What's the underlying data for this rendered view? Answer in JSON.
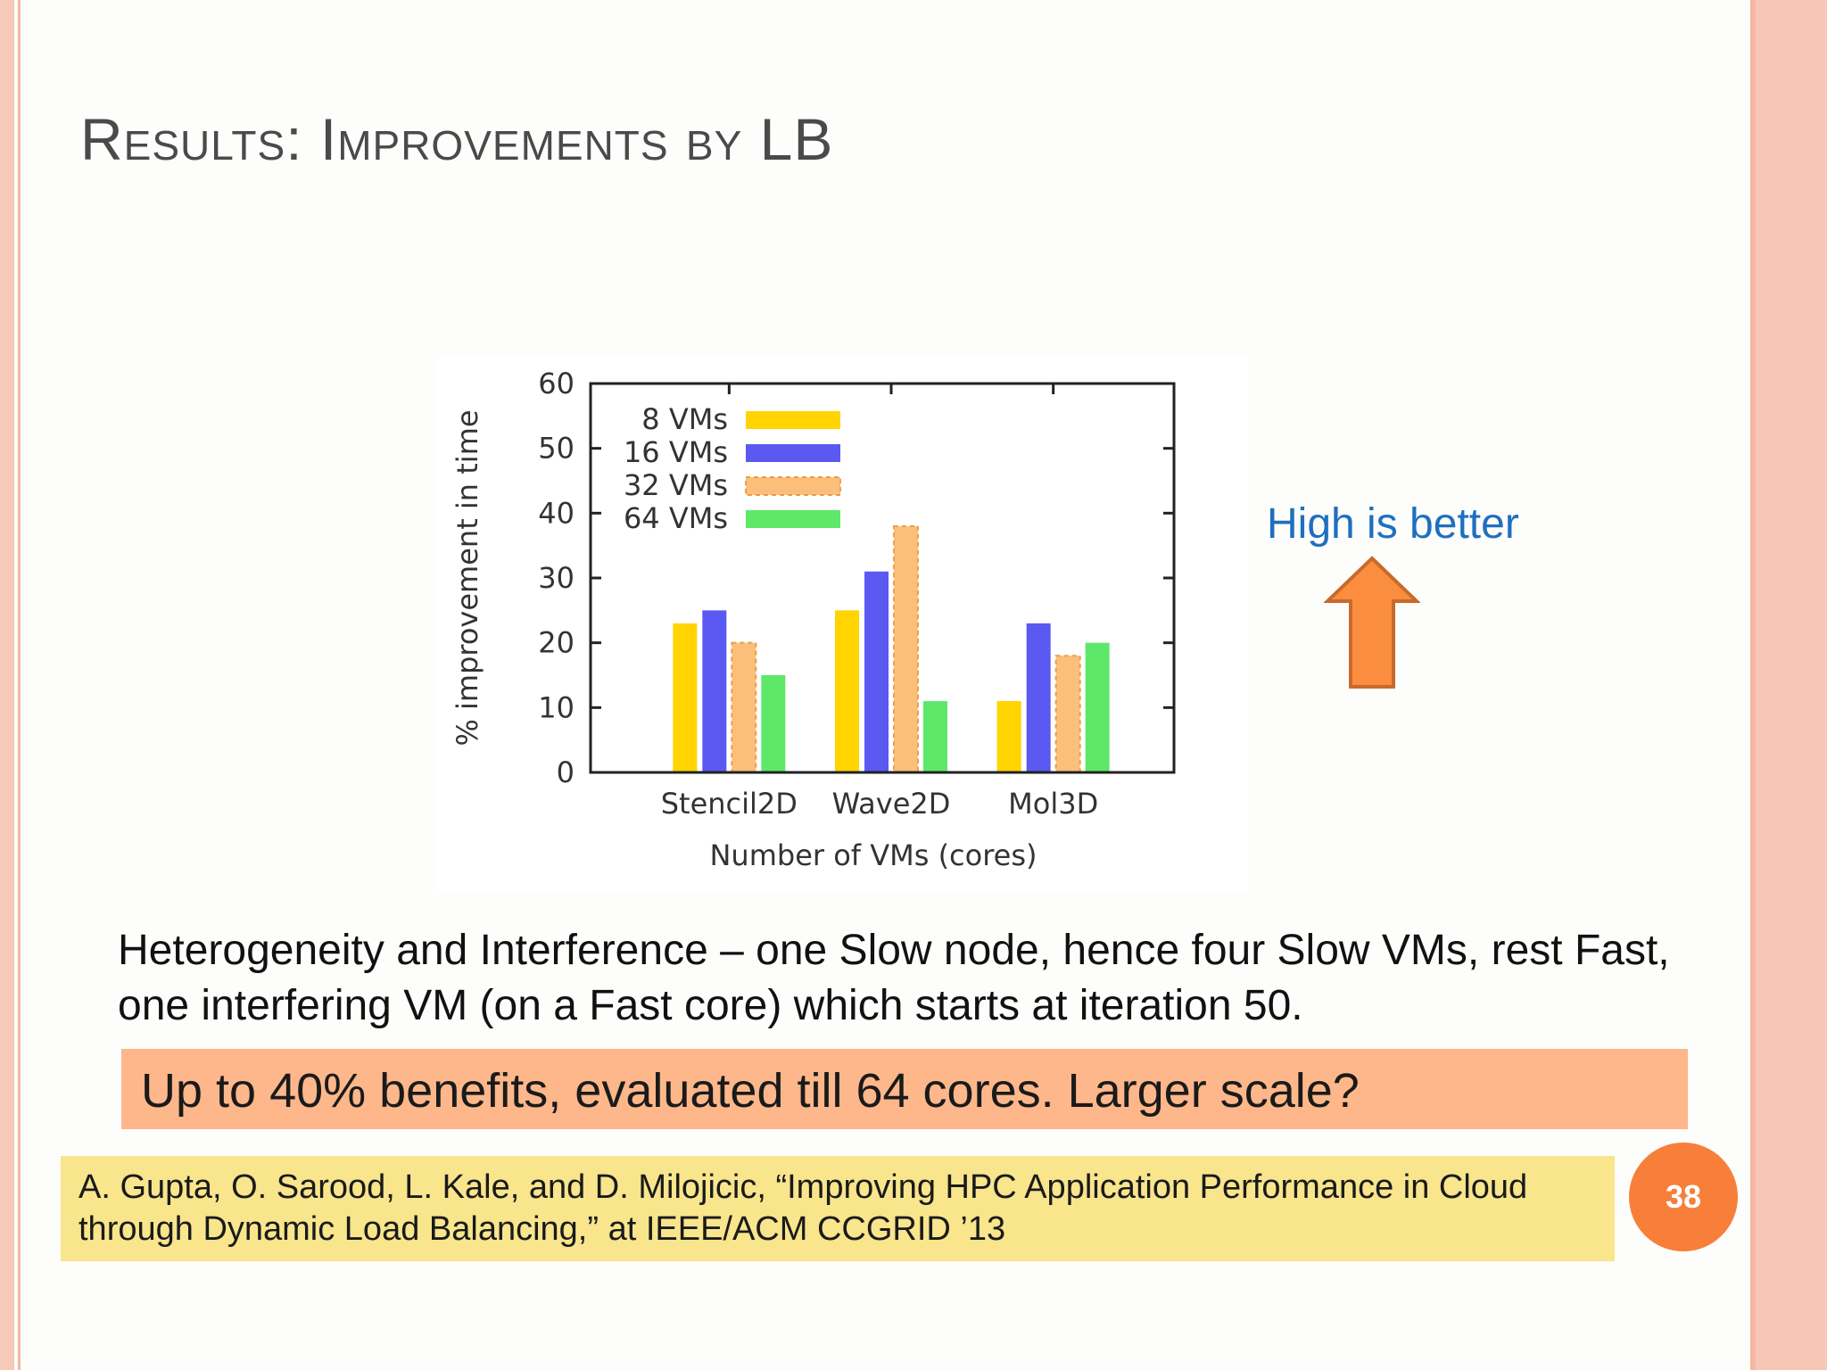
{
  "slide": {
    "title": "Results: Improvements by LB",
    "note": "High is better",
    "body": "Heterogeneity and Interference – one Slow node, hence four Slow VMs, rest Fast, one interfering VM (on a Fast core) which starts at iteration 50.",
    "callout": "Up to 40% benefits, evaluated till 64 cores. Larger scale?",
    "citation": "A. Gupta, O. Sarood, L. Kale, and D. Milojicic, “Improving HPC Application Performance in Cloud through Dynamic Load Balancing,” at IEEE/ACM CCGRID ’13",
    "page_number": "38",
    "arrow_icon": "up-arrow-icon",
    "colors": {
      "callout": "#fdb78a",
      "citation": "#f8e58c",
      "note": "#1f6fbf",
      "arrow": "#fb8d3f",
      "page_badge": "#f77f3a"
    }
  },
  "chart_data": {
    "type": "bar",
    "categories": [
      "Stencil2D",
      "Wave2D",
      "Mol3D"
    ],
    "series": [
      {
        "name": "8 VMs",
        "values": [
          23,
          25,
          11
        ],
        "color": "#ffd400"
      },
      {
        "name": "16 VMs",
        "values": [
          25,
          31,
          23
        ],
        "color": "#5a5af2"
      },
      {
        "name": "32 VMs",
        "values": [
          20,
          38,
          18
        ],
        "color": "#fcbf7a"
      },
      {
        "name": "64 VMs",
        "values": [
          15,
          11,
          20
        ],
        "color": "#5ee86a"
      }
    ],
    "xlabel": "Number of VMs (cores)",
    "ylabel": "% improvement in time",
    "ylim": [
      0,
      60
    ],
    "yticks": [
      "0",
      "10",
      "20",
      "30",
      "40",
      "50",
      "60"
    ],
    "grid": false,
    "legend": "top-left"
  }
}
